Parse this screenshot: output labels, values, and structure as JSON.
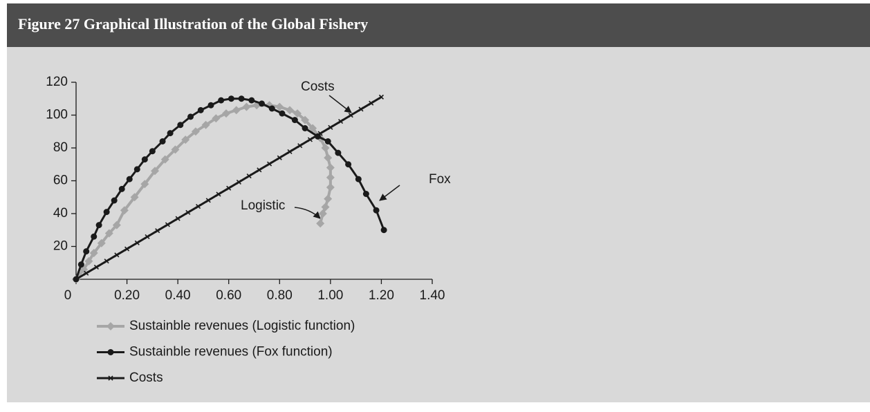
{
  "chart_data": {
    "type": "line",
    "title": "Figure 27  Graphical Illustration of the Global Fishery",
    "xlim": [
      0,
      1.4
    ],
    "ylim": [
      0,
      120
    ],
    "xticks": [
      0,
      {
        "value": 0.2,
        "label": "0.20"
      },
      {
        "value": 0.4,
        "label": "0.40"
      },
      {
        "value": 0.6,
        "label": "0.60"
      },
      {
        "value": 0.8,
        "label": "0.80"
      },
      {
        "value": 1.0,
        "label": "1.00"
      },
      {
        "value": 1.2,
        "label": "1.20"
      },
      {
        "value": 1.4,
        "label": "1.40"
      }
    ],
    "yticks": [
      20,
      40,
      60,
      80,
      100,
      120
    ],
    "series": [
      {
        "name": "Sustainble revenues (Logistic function)",
        "color": "#a6a6a6",
        "marker": "diamond",
        "x": [
          0,
          0.03,
          0.05,
          0.07,
          0.1,
          0.13,
          0.16,
          0.19,
          0.23,
          0.27,
          0.31,
          0.35,
          0.39,
          0.43,
          0.47,
          0.51,
          0.55,
          0.59,
          0.63,
          0.67,
          0.71,
          0.76,
          0.8,
          0.84,
          0.87,
          0.9,
          0.93,
          0.96,
          0.98,
          0.99,
          1.0,
          1.0,
          1.0,
          0.99,
          0.98,
          0.97,
          0.96
        ],
        "values": [
          0,
          6,
          11,
          16,
          22,
          28,
          33,
          42,
          50,
          58,
          66,
          73,
          79,
          85,
          90,
          94,
          98,
          101,
          103,
          105,
          106,
          106,
          105,
          103,
          101,
          97,
          92,
          86,
          80,
          74,
          68,
          62,
          56,
          49,
          44,
          40,
          34
        ]
      },
      {
        "name": "Sustainble revenues (Fox function)",
        "color": "#1a1a1a",
        "marker": "circle",
        "x": [
          0,
          0.02,
          0.04,
          0.07,
          0.09,
          0.12,
          0.15,
          0.18,
          0.21,
          0.24,
          0.27,
          0.3,
          0.34,
          0.37,
          0.41,
          0.45,
          0.49,
          0.53,
          0.57,
          0.61,
          0.65,
          0.69,
          0.73,
          0.77,
          0.81,
          0.86,
          0.9,
          0.95,
          0.99,
          1.03,
          1.07,
          1.11,
          1.14,
          1.18,
          1.21
        ],
        "values": [
          0,
          9,
          17,
          26,
          33,
          41,
          48,
          55,
          61,
          67,
          73,
          78,
          84,
          89,
          94,
          99,
          103,
          106,
          109,
          110,
          110,
          109,
          107,
          104,
          101,
          97,
          92,
          87,
          84,
          77,
          70,
          61,
          52,
          42,
          30
        ]
      },
      {
        "name": "Costs",
        "color": "#1a1a1a",
        "marker": "cross",
        "x": [
          0,
          0.04,
          0.08,
          0.12,
          0.16,
          0.2,
          0.24,
          0.28,
          0.32,
          0.36,
          0.4,
          0.44,
          0.48,
          0.52,
          0.56,
          0.6,
          0.64,
          0.68,
          0.72,
          0.76,
          0.8,
          0.84,
          0.88,
          0.92,
          0.96,
          1.0,
          1.04,
          1.08,
          1.12,
          1.16,
          1.2
        ],
        "values": [
          0,
          3.7,
          7.4,
          11.1,
          14.8,
          18.5,
          22.2,
          25.9,
          29.6,
          33.3,
          37,
          40.7,
          44.4,
          48.1,
          51.8,
          55.5,
          59.2,
          62.9,
          66.6,
          70.3,
          74,
          77.7,
          81.4,
          85.1,
          88.8,
          92.5,
          96.2,
          99.9,
          103.6,
          107.3,
          111
        ]
      }
    ],
    "annotations": [
      "Costs",
      "Fox",
      "Logistic"
    ]
  }
}
